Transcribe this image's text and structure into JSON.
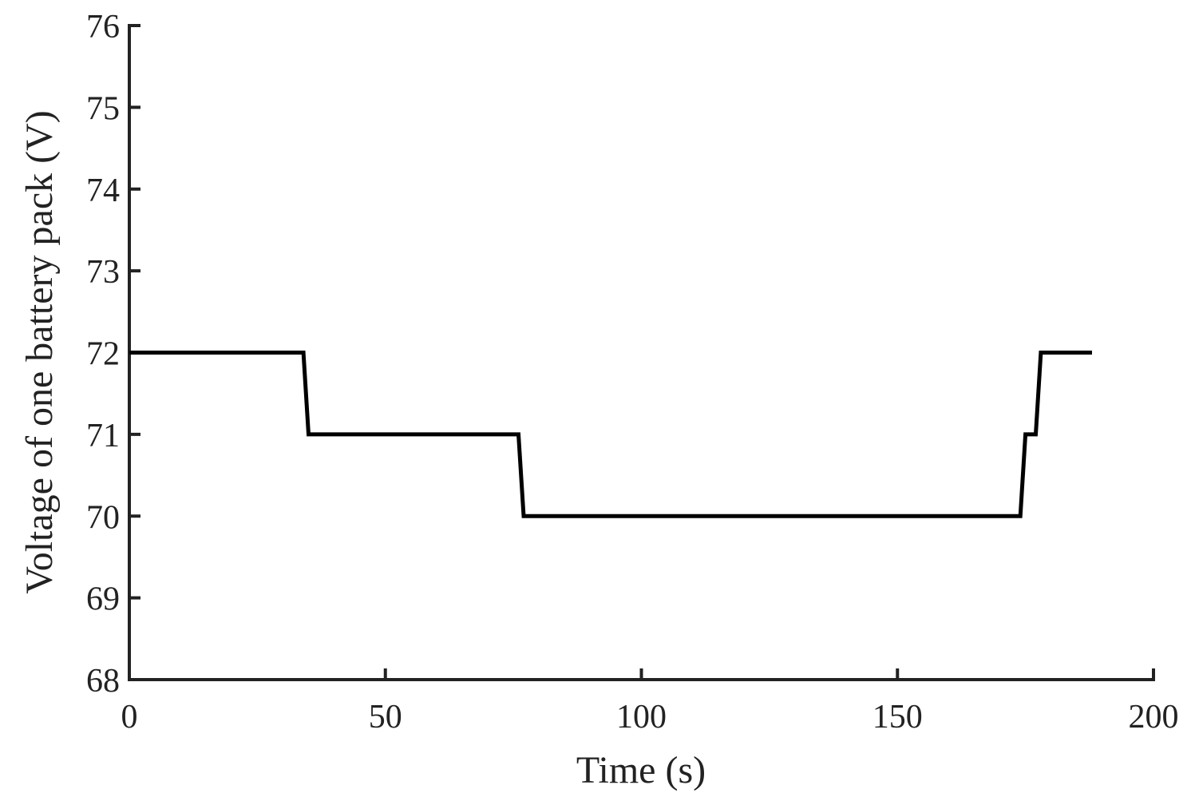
{
  "chart_data": {
    "type": "line",
    "title": "",
    "xlabel": "Time (s)",
    "ylabel": "Voltage of one battery pack (V)",
    "xlim": [
      0,
      200
    ],
    "ylim": [
      68,
      76
    ],
    "xticks": [
      0,
      50,
      100,
      150,
      200
    ],
    "yticks": [
      68,
      69,
      70,
      71,
      72,
      73,
      74,
      75,
      76
    ],
    "xtick_labels": [
      "0",
      "50",
      "100",
      "150",
      "200"
    ],
    "ytick_labels": [
      "68",
      "69",
      "70",
      "71",
      "72",
      "73",
      "74",
      "75",
      "76"
    ],
    "grid": false,
    "series": [
      {
        "color": "#000000",
        "x": [
          0,
          34,
          35,
          76,
          77,
          174,
          175,
          176,
          177,
          178,
          188
        ],
        "y": [
          72,
          72,
          71,
          71,
          70,
          70,
          71,
          71,
          71,
          72,
          72
        ]
      }
    ]
  }
}
